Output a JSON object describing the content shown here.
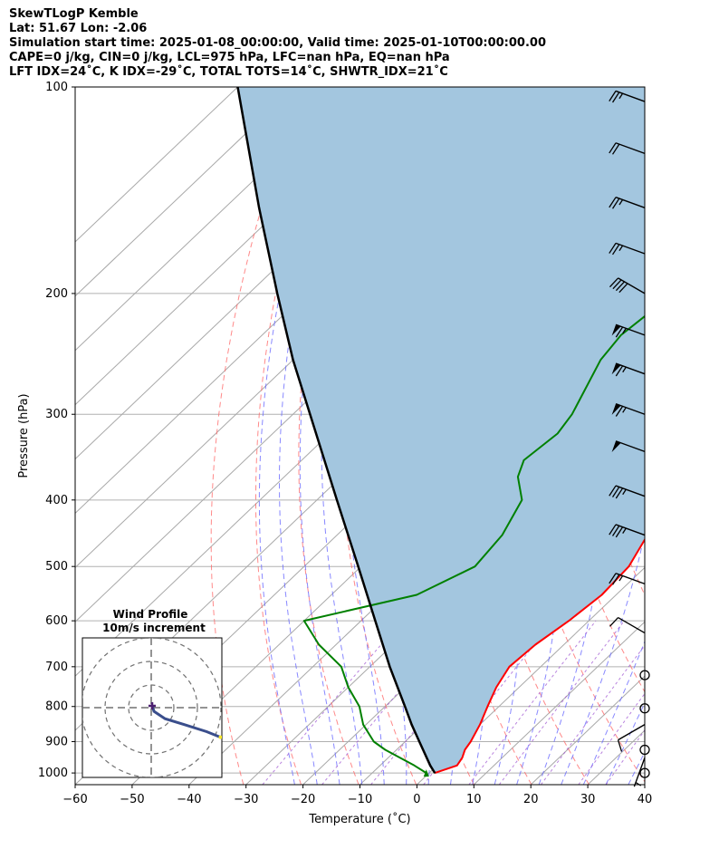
{
  "header": {
    "line1": "SkewTLogP Kemble",
    "line2": "Lat: 51.67   Lon: -2.06",
    "line3": "Simulation start time: 2025-01-08_00:00:00, Valid time: 2025-01-10T00:00:00.00",
    "line4": "CAPE=0 j/kg, CIN=0 j/kg, LCL=975 hPa, LFC=nan hPa, EQ=nan hPa",
    "line5": "LFT IDX=24˚C, K IDX=-29˚C, TOTAL TOTS=14˚C, SHWTR_IDX=21˚C"
  },
  "chart_data": {
    "type": "line",
    "chart_kind": "skew-T log-P",
    "xlabel": "Temperature (˚C)",
    "ylabel": "Pressure (hPa)",
    "xlim": [
      -60,
      40
    ],
    "ylim": [
      1040,
      100
    ],
    "y_scale": "log",
    "grid": true,
    "x_ticks": [
      -60,
      -50,
      -40,
      -30,
      -20,
      -10,
      0,
      10,
      20,
      30,
      40
    ],
    "y_ticks": [
      100,
      200,
      300,
      400,
      500,
      600,
      700,
      800,
      900,
      1000
    ],
    "colors": {
      "temperature": "#ff0000",
      "dewpoint": "#008000",
      "parcel": "#000000",
      "cape_cin_fill": "#a3c6df",
      "dry_adiabats": "#ff6b6b",
      "moist_adiabats": "#6a6aff",
      "mixing_ratio": "#9b4fd0",
      "isotherms": "#a8a8a8"
    },
    "series": [
      {
        "key": "temperature",
        "points": [
          [
            1000,
            1.0
          ],
          [
            975,
            3.5
          ],
          [
            950,
            3.0
          ],
          [
            925,
            2.0
          ],
          [
            900,
            1.5
          ],
          [
            850,
            0.0
          ],
          [
            800,
            -2.0
          ],
          [
            750,
            -4.0
          ],
          [
            700,
            -5.5
          ],
          [
            650,
            -5.0
          ],
          [
            600,
            -3.5
          ],
          [
            550,
            -2.5
          ],
          [
            500,
            -3.0
          ],
          [
            450,
            -5.5
          ],
          [
            400,
            -8.5
          ],
          [
            350,
            -12.0
          ],
          [
            300,
            -16.5
          ],
          [
            250,
            -21.0
          ],
          [
            220,
            -22.5
          ],
          [
            200,
            -23.0
          ],
          [
            180,
            -22.0
          ],
          [
            160,
            -21.0
          ],
          [
            150,
            -21.5
          ],
          [
            130,
            -24.5
          ],
          [
            115,
            -28.5
          ],
          [
            100,
            -32.0
          ]
        ]
      },
      {
        "key": "dewpoint",
        "points": [
          [
            1000,
            -0.5
          ],
          [
            975,
            -4.0
          ],
          [
            925,
            -12.0
          ],
          [
            900,
            -15.5
          ],
          [
            850,
            -20.5
          ],
          [
            800,
            -24.5
          ],
          [
            750,
            -30.0
          ],
          [
            700,
            -35.0
          ],
          [
            650,
            -43.0
          ],
          [
            600,
            -50.0
          ],
          [
            550,
            -35.0
          ],
          [
            500,
            -30.0
          ],
          [
            450,
            -31.0
          ],
          [
            400,
            -34.0
          ],
          [
            370,
            -39.0
          ],
          [
            350,
            -41.0
          ],
          [
            320,
            -40.0
          ],
          [
            300,
            -41.0
          ],
          [
            250,
            -46.0
          ],
          [
            230,
            -47.0
          ],
          [
            210,
            -46.0
          ],
          [
            200,
            -46.5
          ],
          [
            160,
            -49.5
          ],
          [
            150,
            -50.5
          ],
          [
            130,
            -50.5
          ],
          [
            100,
            -51.5
          ]
        ]
      },
      {
        "key": "parcel",
        "points": [
          [
            1000,
            1.0
          ],
          [
            975,
            -1.2
          ],
          [
            900,
            -7.5
          ],
          [
            850,
            -12.0
          ],
          [
            800,
            -16.5
          ],
          [
            700,
            -26.5
          ],
          [
            600,
            -37.5
          ],
          [
            500,
            -50.5
          ],
          [
            400,
            -66.5
          ],
          [
            300,
            -87.0
          ],
          [
            250,
            -100.0
          ],
          [
            200,
            -115.0
          ],
          [
            150,
            -134.0
          ],
          [
            100,
            -160.0
          ]
        ]
      }
    ],
    "wind_barbs": [
      {
        "pressure": 105,
        "speed_kt": 25,
        "direction_deg": 290
      },
      {
        "pressure": 125,
        "speed_kt": 20,
        "direction_deg": 290
      },
      {
        "pressure": 150,
        "speed_kt": 25,
        "direction_deg": 290
      },
      {
        "pressure": 175,
        "speed_kt": 25,
        "direction_deg": 290
      },
      {
        "pressure": 200,
        "speed_kt": 40,
        "direction_deg": 300
      },
      {
        "pressure": 230,
        "speed_kt": 65,
        "direction_deg": 290
      },
      {
        "pressure": 262,
        "speed_kt": 65,
        "direction_deg": 290
      },
      {
        "pressure": 300,
        "speed_kt": 65,
        "direction_deg": 290
      },
      {
        "pressure": 340,
        "speed_kt": 50,
        "direction_deg": 290
      },
      {
        "pressure": 395,
        "speed_kt": 35,
        "direction_deg": 290
      },
      {
        "pressure": 450,
        "speed_kt": 35,
        "direction_deg": 290
      },
      {
        "pressure": 530,
        "speed_kt": 25,
        "direction_deg": 290
      },
      {
        "pressure": 625,
        "speed_kt": 10,
        "direction_deg": 300
      },
      {
        "pressure": 720,
        "speed_kt": 0,
        "direction_deg": 0
      },
      {
        "pressure": 805,
        "speed_kt": 0,
        "direction_deg": 0
      },
      {
        "pressure": 850,
        "speed_kt": 10,
        "direction_deg": 240
      },
      {
        "pressure": 925,
        "speed_kt": 0,
        "direction_deg": 0
      },
      {
        "pressure": 950,
        "speed_kt": 5,
        "direction_deg": 200
      },
      {
        "pressure": 1000,
        "speed_kt": 0,
        "direction_deg": 0
      }
    ],
    "inset": {
      "title": "Wind Profile",
      "subtitle": "10m/s increment",
      "hodograph": [
        [
          0.1,
          0.2
        ],
        [
          0.3,
          -0.4
        ],
        [
          1.5,
          -1.2
        ],
        [
          3.5,
          -1.8
        ],
        [
          6.0,
          -2.6
        ],
        [
          7.5,
          -3.2
        ]
      ]
    }
  }
}
